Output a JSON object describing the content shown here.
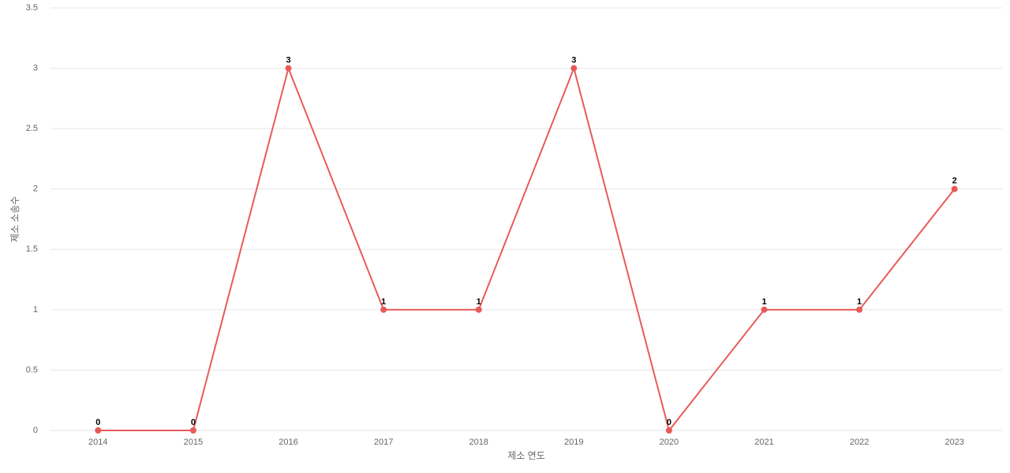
{
  "chart_data": {
    "type": "line",
    "x_label": "제소 연도",
    "y_label": "제소 소송수",
    "categories": [
      "2014",
      "2015",
      "2016",
      "2017",
      "2018",
      "2019",
      "2020",
      "2021",
      "2022",
      "2023"
    ],
    "values": [
      0,
      0,
      3,
      1,
      1,
      3,
      0,
      1,
      1,
      2
    ],
    "color": "#e85a5a",
    "ylim": [
      0,
      3.5
    ],
    "yticks": [
      0,
      0.5,
      1,
      1.5,
      2,
      2.5,
      3,
      3.5
    ],
    "grid": true
  }
}
